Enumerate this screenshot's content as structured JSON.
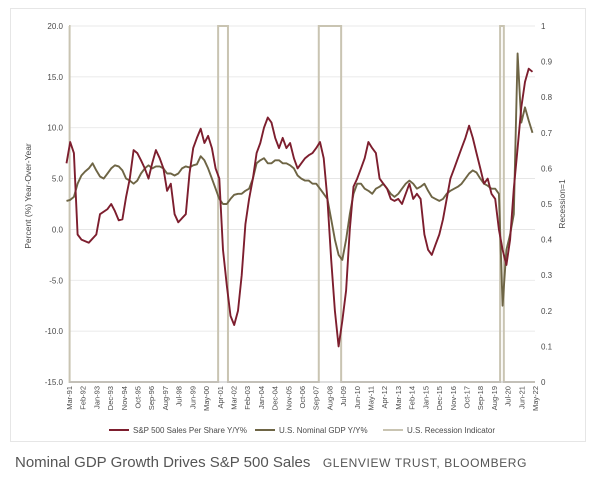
{
  "caption": {
    "title": "Nominal GDP Growth Drives S&P 500 Sales",
    "credit": "GLENVIEW TRUST, BLOOMBERG"
  },
  "chart_data": {
    "type": "line",
    "ylabel": "Percent (%) Year-Over-Year",
    "y2label": "Recession=1",
    "ylim": [
      -15,
      20
    ],
    "y2lim": [
      0,
      1
    ],
    "yticks": [
      "20.0",
      "15.0",
      "10.0",
      "5.0",
      "0.0",
      "-5.0",
      "-10.0",
      "-15.0"
    ],
    "y2ticks": [
      "1",
      "0.9",
      "0.8",
      "0.7",
      "0.6",
      "0.5",
      "0.4",
      "0.3",
      "0.2",
      "0.1",
      "0"
    ],
    "xticks": [
      "Mar-91",
      "Feb-92",
      "Jan-93",
      "Dec-93",
      "Nov-94",
      "Oct-95",
      "Sep-96",
      "Aug-97",
      "Jul-98",
      "Jun-99",
      "May-00",
      "Apr-01",
      "Mar-02",
      "Feb-03",
      "Jan-04",
      "Dec-04",
      "Nov-05",
      "Oct-06",
      "Sep-07",
      "Aug-08",
      "Jul-09",
      "Jun-10",
      "May-11",
      "Apr-12",
      "Mar-13",
      "Feb-14",
      "Jan-15",
      "Dec-15",
      "Nov-16",
      "Oct-17",
      "Sep-18",
      "Aug-19",
      "Jul-20",
      "Jun-21",
      "May-22"
    ],
    "legend_position": "bottom",
    "colors": {
      "sales": "#7d1e2e",
      "gdp": "#6e6545",
      "recession": "#c9c4b2"
    },
    "series": [
      {
        "name": "S&P 500 Sales Per Share Y/Y%",
        "axis": "left",
        "points": [
          [
            1991.0,
            6.5
          ],
          [
            1991.25,
            8.6
          ],
          [
            1991.5,
            7.5
          ],
          [
            1991.75,
            -0.5
          ],
          [
            1992.0,
            -1.0
          ],
          [
            1992.5,
            -1.3
          ],
          [
            1993.0,
            -0.5
          ],
          [
            1993.25,
            1.5
          ],
          [
            1993.75,
            2.0
          ],
          [
            1994.0,
            2.5
          ],
          [
            1994.25,
            1.8
          ],
          [
            1994.5,
            0.9
          ],
          [
            1994.75,
            1.0
          ],
          [
            1995.0,
            3.2
          ],
          [
            1995.25,
            5.0
          ],
          [
            1995.5,
            7.8
          ],
          [
            1995.75,
            7.5
          ],
          [
            1996.0,
            6.8
          ],
          [
            1996.25,
            6.0
          ],
          [
            1996.5,
            5.0
          ],
          [
            1996.75,
            6.5
          ],
          [
            1997.0,
            7.8
          ],
          [
            1997.25,
            7.0
          ],
          [
            1997.5,
            6.0
          ],
          [
            1997.75,
            3.8
          ],
          [
            1998.0,
            4.5
          ],
          [
            1998.25,
            1.5
          ],
          [
            1998.5,
            0.7
          ],
          [
            1998.75,
            1.1
          ],
          [
            1999.0,
            1.5
          ],
          [
            1999.25,
            5.5
          ],
          [
            1999.5,
            8.0
          ],
          [
            1999.75,
            9.0
          ],
          [
            2000.0,
            9.9
          ],
          [
            2000.25,
            8.5
          ],
          [
            2000.5,
            9.2
          ],
          [
            2000.75,
            8.0
          ],
          [
            2001.0,
            6.0
          ],
          [
            2001.25,
            5.0
          ],
          [
            2001.5,
            -2.0
          ],
          [
            2001.75,
            -5.5
          ],
          [
            2002.0,
            -8.5
          ],
          [
            2002.25,
            -9.4
          ],
          [
            2002.5,
            -8.0
          ],
          [
            2002.75,
            -4.5
          ],
          [
            2003.0,
            0.5
          ],
          [
            2003.25,
            3.0
          ],
          [
            2003.5,
            5.0
          ],
          [
            2003.75,
            7.5
          ],
          [
            2004.0,
            8.5
          ],
          [
            2004.25,
            10.0
          ],
          [
            2004.5,
            11.0
          ],
          [
            2004.75,
            10.5
          ],
          [
            2005.0,
            9.0
          ],
          [
            2005.25,
            8.0
          ],
          [
            2005.5,
            9.0
          ],
          [
            2005.75,
            8.0
          ],
          [
            2006.0,
            8.5
          ],
          [
            2006.25,
            7.0
          ],
          [
            2006.5,
            6.0
          ],
          [
            2006.75,
            6.5
          ],
          [
            2007.0,
            7.0
          ],
          [
            2007.25,
            7.3
          ],
          [
            2007.5,
            7.5
          ],
          [
            2007.75,
            8.0
          ],
          [
            2008.0,
            8.6
          ],
          [
            2008.25,
            7.0
          ],
          [
            2008.5,
            3.0
          ],
          [
            2008.75,
            -3.0
          ],
          [
            2009.0,
            -8.0
          ],
          [
            2009.25,
            -11.5
          ],
          [
            2009.5,
            -9.0
          ],
          [
            2009.75,
            -6.0
          ],
          [
            2010.0,
            0.0
          ],
          [
            2010.25,
            4.2
          ],
          [
            2010.5,
            5.0
          ],
          [
            2010.75,
            6.0
          ],
          [
            2011.0,
            7.0
          ],
          [
            2011.25,
            8.6
          ],
          [
            2011.5,
            8.0
          ],
          [
            2011.75,
            7.5
          ],
          [
            2012.0,
            5.0
          ],
          [
            2012.25,
            4.5
          ],
          [
            2012.5,
            4.0
          ],
          [
            2012.75,
            3.0
          ],
          [
            2013.0,
            2.8
          ],
          [
            2013.25,
            3.0
          ],
          [
            2013.5,
            2.5
          ],
          [
            2013.75,
            3.5
          ],
          [
            2014.0,
            4.5
          ],
          [
            2014.25,
            3.0
          ],
          [
            2014.5,
            3.5
          ],
          [
            2014.75,
            3.0
          ],
          [
            2015.0,
            -0.5
          ],
          [
            2015.25,
            -2.0
          ],
          [
            2015.5,
            -2.5
          ],
          [
            2015.75,
            -1.5
          ],
          [
            2016.0,
            -0.5
          ],
          [
            2016.25,
            1.0
          ],
          [
            2016.5,
            3.0
          ],
          [
            2016.75,
            5.0
          ],
          [
            2017.0,
            6.0
          ],
          [
            2017.25,
            7.0
          ],
          [
            2017.5,
            8.0
          ],
          [
            2017.75,
            9.0
          ],
          [
            2018.0,
            10.2
          ],
          [
            2018.25,
            9.0
          ],
          [
            2018.5,
            7.5
          ],
          [
            2018.75,
            6.0
          ],
          [
            2019.0,
            4.5
          ],
          [
            2019.25,
            5.0
          ],
          [
            2019.5,
            3.5
          ],
          [
            2019.75,
            3.0
          ],
          [
            2020.0,
            0.0
          ],
          [
            2020.25,
            -2.0
          ],
          [
            2020.5,
            -3.5
          ],
          [
            2020.75,
            -1.0
          ],
          [
            2021.0,
            4.0
          ],
          [
            2021.25,
            8.0
          ],
          [
            2021.5,
            12.0
          ],
          [
            2021.75,
            14.5
          ],
          [
            2022.0,
            15.8
          ],
          [
            2022.25,
            15.5
          ]
        ]
      },
      {
        "name": "U.S. Nominal GDP Y/Y%",
        "axis": "left",
        "points": [
          [
            1991.0,
            2.8
          ],
          [
            1991.25,
            2.9
          ],
          [
            1991.5,
            3.2
          ],
          [
            1991.75,
            4.5
          ],
          [
            1992.0,
            5.3
          ],
          [
            1992.25,
            5.7
          ],
          [
            1992.5,
            6.0
          ],
          [
            1992.75,
            6.5
          ],
          [
            1993.0,
            5.8
          ],
          [
            1993.25,
            5.2
          ],
          [
            1993.5,
            5.0
          ],
          [
            1993.75,
            5.5
          ],
          [
            1994.0,
            6.0
          ],
          [
            1994.25,
            6.3
          ],
          [
            1994.5,
            6.2
          ],
          [
            1994.75,
            5.8
          ],
          [
            1995.0,
            5.0
          ],
          [
            1995.25,
            4.8
          ],
          [
            1995.5,
            4.5
          ],
          [
            1995.75,
            4.8
          ],
          [
            1996.0,
            5.5
          ],
          [
            1996.25,
            6.0
          ],
          [
            1996.5,
            6.3
          ],
          [
            1996.75,
            6.0
          ],
          [
            1997.0,
            6.2
          ],
          [
            1997.25,
            6.2
          ],
          [
            1997.5,
            6.0
          ],
          [
            1997.75,
            5.5
          ],
          [
            1998.0,
            5.5
          ],
          [
            1998.25,
            5.3
          ],
          [
            1998.5,
            5.5
          ],
          [
            1998.75,
            6.0
          ],
          [
            1999.0,
            6.2
          ],
          [
            1999.25,
            6.1
          ],
          [
            1999.5,
            6.3
          ],
          [
            1999.75,
            6.4
          ],
          [
            2000.0,
            7.2
          ],
          [
            2000.25,
            6.8
          ],
          [
            2000.5,
            6.0
          ],
          [
            2000.75,
            5.0
          ],
          [
            2001.0,
            4.0
          ],
          [
            2001.25,
            3.0
          ],
          [
            2001.5,
            2.5
          ],
          [
            2001.75,
            2.5
          ],
          [
            2002.0,
            3.0
          ],
          [
            2002.25,
            3.4
          ],
          [
            2002.5,
            3.5
          ],
          [
            2002.75,
            3.5
          ],
          [
            2003.0,
            3.8
          ],
          [
            2003.25,
            4.0
          ],
          [
            2003.5,
            5.0
          ],
          [
            2003.75,
            6.5
          ],
          [
            2004.0,
            6.8
          ],
          [
            2004.25,
            7.0
          ],
          [
            2004.5,
            6.5
          ],
          [
            2004.75,
            6.5
          ],
          [
            2005.0,
            6.8
          ],
          [
            2005.25,
            6.8
          ],
          [
            2005.5,
            6.5
          ],
          [
            2005.75,
            6.5
          ],
          [
            2006.0,
            6.3
          ],
          [
            2006.25,
            6.0
          ],
          [
            2006.5,
            5.3
          ],
          [
            2006.75,
            5.0
          ],
          [
            2007.0,
            4.8
          ],
          [
            2007.25,
            4.8
          ],
          [
            2007.5,
            4.5
          ],
          [
            2007.75,
            4.5
          ],
          [
            2008.0,
            4.0
          ],
          [
            2008.25,
            3.5
          ],
          [
            2008.5,
            3.0
          ],
          [
            2008.75,
            1.0
          ],
          [
            2009.0,
            -1.0
          ],
          [
            2009.25,
            -2.5
          ],
          [
            2009.5,
            -3.0
          ],
          [
            2009.75,
            -1.0
          ],
          [
            2010.0,
            1.5
          ],
          [
            2010.25,
            3.5
          ],
          [
            2010.5,
            4.5
          ],
          [
            2010.75,
            4.5
          ],
          [
            2011.0,
            4.0
          ],
          [
            2011.25,
            3.8
          ],
          [
            2011.5,
            3.5
          ],
          [
            2011.75,
            4.0
          ],
          [
            2012.0,
            4.2
          ],
          [
            2012.25,
            4.5
          ],
          [
            2012.5,
            4.0
          ],
          [
            2012.75,
            3.5
          ],
          [
            2013.0,
            3.2
          ],
          [
            2013.25,
            3.5
          ],
          [
            2013.5,
            4.0
          ],
          [
            2013.75,
            4.5
          ],
          [
            2014.0,
            4.8
          ],
          [
            2014.25,
            4.5
          ],
          [
            2014.5,
            4.0
          ],
          [
            2014.75,
            4.2
          ],
          [
            2015.0,
            4.5
          ],
          [
            2015.25,
            3.8
          ],
          [
            2015.5,
            3.2
          ],
          [
            2015.75,
            3.0
          ],
          [
            2016.0,
            2.8
          ],
          [
            2016.25,
            3.0
          ],
          [
            2016.5,
            3.5
          ],
          [
            2016.75,
            3.8
          ],
          [
            2017.0,
            4.0
          ],
          [
            2017.25,
            4.2
          ],
          [
            2017.5,
            4.5
          ],
          [
            2017.75,
            5.0
          ],
          [
            2018.0,
            5.5
          ],
          [
            2018.25,
            5.8
          ],
          [
            2018.5,
            5.6
          ],
          [
            2018.75,
            5.0
          ],
          [
            2019.0,
            4.5
          ],
          [
            2019.25,
            4.3
          ],
          [
            2019.5,
            4.0
          ],
          [
            2019.75,
            4.0
          ],
          [
            2020.0,
            3.5
          ],
          [
            2020.25,
            -7.5
          ],
          [
            2020.5,
            -2.0
          ],
          [
            2020.75,
            -0.5
          ],
          [
            2021.0,
            1.5
          ],
          [
            2021.25,
            17.3
          ],
          [
            2021.5,
            10.5
          ],
          [
            2021.75,
            12.0
          ],
          [
            2022.0,
            10.7
          ],
          [
            2022.25,
            9.5
          ]
        ]
      },
      {
        "name": "U.S. Recession Indicator",
        "axis": "right",
        "periods": [
          [
            2001.17,
            2001.83
          ],
          [
            2007.92,
            2009.42
          ],
          [
            2020.08,
            2020.33
          ]
        ]
      }
    ]
  }
}
